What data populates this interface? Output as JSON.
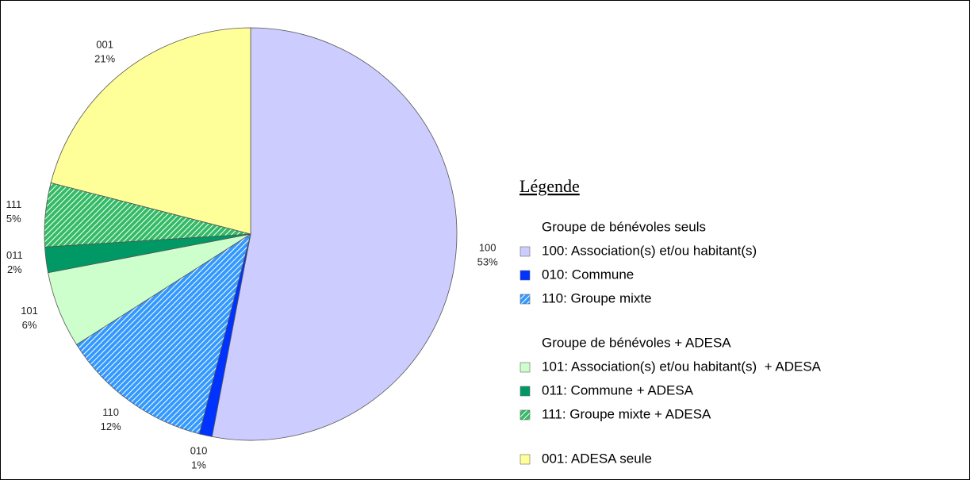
{
  "chart_data": {
    "type": "pie",
    "categories": [
      "100",
      "010",
      "110",
      "101",
      "011",
      "111",
      "001"
    ],
    "values": [
      53,
      1,
      12,
      6,
      2,
      5,
      21
    ],
    "value_labels": [
      "53%",
      "1%",
      "12%",
      "6%",
      "2%",
      "5%",
      "21%"
    ],
    "colors": [
      "#ccccff",
      "#0033ff",
      "#3399ff",
      "#ccffcc",
      "#009966",
      "#33bb66",
      "#ffff99"
    ],
    "hatched": [
      false,
      false,
      true,
      false,
      false,
      true,
      false
    ],
    "legend_title": "Légende",
    "legend_groups": [
      {
        "title": "Groupe de bénévoles seuls",
        "entries": [
          "100: Association(s) et/ou habitant(s)",
          "010: Commune",
          "110: Groupe mixte"
        ]
      },
      {
        "title": "Groupe de bénévoles + ADESA",
        "entries": [
          "101: Association(s) et/ou habitant(s)  + ADESA",
          "011: Commune + ADESA",
          "111: Groupe mixte + ADESA"
        ]
      },
      {
        "entries": [
          "001: ADESA seule"
        ]
      }
    ]
  }
}
